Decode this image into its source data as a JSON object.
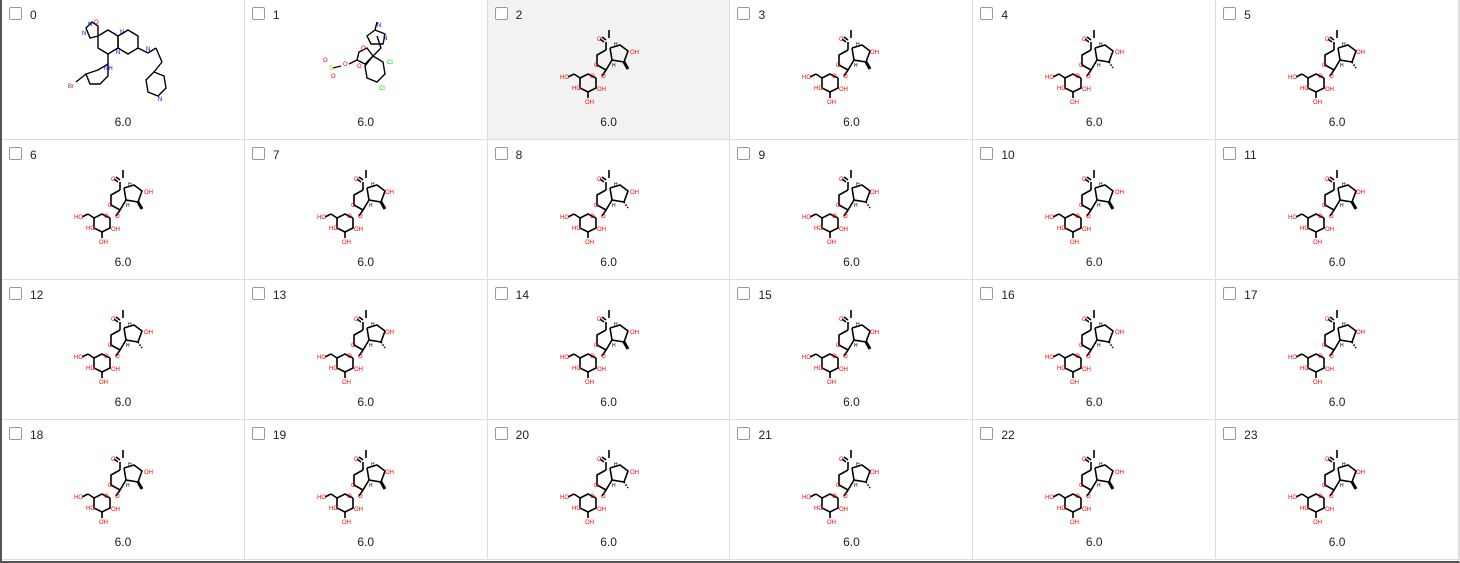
{
  "selected_index": 2,
  "items": [
    {
      "label": "0",
      "score": "6.0",
      "structure": "heteroaryl-hydrazone"
    },
    {
      "label": "1",
      "score": "6.0",
      "structure": "dioxolane-imidazole"
    },
    {
      "label": "2",
      "score": "6.0",
      "structure": "iridoid-glycoside"
    },
    {
      "label": "3",
      "score": "6.0",
      "structure": "iridoid-glycoside"
    },
    {
      "label": "4",
      "score": "6.0",
      "structure": "iridoid-glycoside"
    },
    {
      "label": "5",
      "score": "6.0",
      "structure": "iridoid-glycoside"
    },
    {
      "label": "6",
      "score": "6.0",
      "structure": "iridoid-glycoside"
    },
    {
      "label": "7",
      "score": "6.0",
      "structure": "iridoid-glycoside"
    },
    {
      "label": "8",
      "score": "6.0",
      "structure": "iridoid-glycoside"
    },
    {
      "label": "9",
      "score": "6.0",
      "structure": "iridoid-glycoside"
    },
    {
      "label": "10",
      "score": "6.0",
      "structure": "iridoid-glycoside"
    },
    {
      "label": "11",
      "score": "6.0",
      "structure": "iridoid-glycoside"
    },
    {
      "label": "12",
      "score": "6.0",
      "structure": "iridoid-glycoside"
    },
    {
      "label": "13",
      "score": "6.0",
      "structure": "iridoid-glycoside"
    },
    {
      "label": "14",
      "score": "6.0",
      "structure": "iridoid-glycoside"
    },
    {
      "label": "15",
      "score": "6.0",
      "structure": "iridoid-glycoside"
    },
    {
      "label": "16",
      "score": "6.0",
      "structure": "iridoid-glycoside"
    },
    {
      "label": "17",
      "score": "6.0",
      "structure": "iridoid-glycoside"
    },
    {
      "label": "18",
      "score": "6.0",
      "structure": "iridoid-glycoside"
    },
    {
      "label": "19",
      "score": "6.0",
      "structure": "iridoid-glycoside"
    },
    {
      "label": "20",
      "score": "6.0",
      "structure": "iridoid-glycoside"
    },
    {
      "label": "21",
      "score": "6.0",
      "structure": "iridoid-glycoside"
    },
    {
      "label": "22",
      "score": "6.0",
      "structure": "iridoid-glycoside"
    },
    {
      "label": "23",
      "score": "6.0",
      "structure": "iridoid-glycoside"
    }
  ],
  "atom_labels": {
    "oh": "OH",
    "ho": "HO",
    "h": "H",
    "o": "O",
    "n": "N",
    "nh": "NH",
    "h_plain": "H",
    "br": "Br",
    "cl": "Cl",
    "s": "S"
  },
  "colors": {
    "oxygen": "#ff0000",
    "nitrogen": "#0000ff",
    "bond": "#000000",
    "sulfur": "#cccc00",
    "chlorine": "#00cc00",
    "bromine": "#a52a2a"
  }
}
